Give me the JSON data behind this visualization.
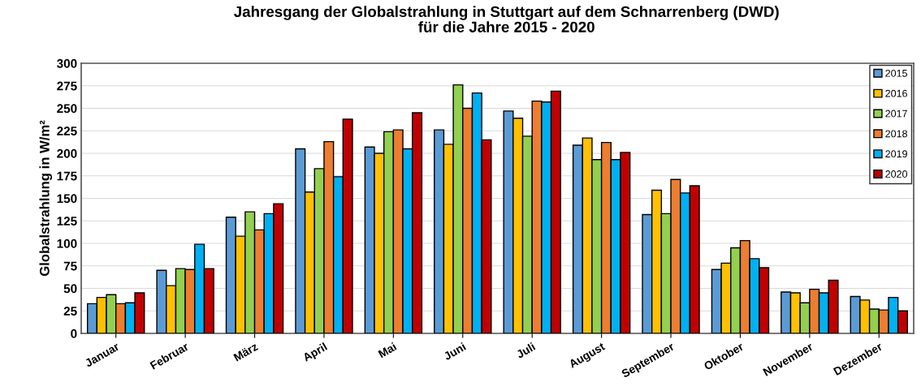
{
  "chart_data": {
    "type": "bar",
    "title": "Jahresgang der Globalstrahlung in Stuttgart auf dem Schnarrenberg (DWD)\nfür die Jahre 2015 - 2020",
    "ylabel": "Globalstrahlung in W/m²",
    "categories": [
      "Januar",
      "Februar",
      "März",
      "April",
      "Mai",
      "Juni",
      "Juli",
      "August",
      "September",
      "Oktober",
      "November",
      "Dezember"
    ],
    "series": [
      {
        "name": "2015",
        "color": "#5b9bd5",
        "values": [
          33,
          70,
          129,
          205,
          207,
          226,
          247,
          209,
          132,
          71,
          46,
          41
        ]
      },
      {
        "name": "2016",
        "color": "#ffc000",
        "values": [
          40,
          53,
          108,
          157,
          200,
          210,
          239,
          217,
          159,
          78,
          45,
          37
        ]
      },
      {
        "name": "2017",
        "color": "#92d050",
        "values": [
          43,
          72,
          135,
          183,
          224,
          276,
          219,
          193,
          133,
          95,
          34,
          27
        ]
      },
      {
        "name": "2018",
        "color": "#ed7d31",
        "values": [
          33,
          71,
          115,
          213,
          226,
          250,
          258,
          212,
          171,
          103,
          49,
          26
        ]
      },
      {
        "name": "2019",
        "color": "#00b0f0",
        "values": [
          34,
          99,
          133,
          174,
          205,
          267,
          257,
          193,
          156,
          83,
          45,
          40
        ]
      },
      {
        "name": "2020",
        "color": "#c00000",
        "values": [
          45,
          72,
          144,
          238,
          245,
          215,
          269,
          201,
          164,
          73,
          59,
          25
        ]
      }
    ],
    "ylim": [
      0,
      300
    ],
    "yticks": [
      0,
      25,
      50,
      75,
      100,
      125,
      150,
      175,
      200,
      225,
      250,
      275,
      300
    ],
    "grid": "y",
    "legend": "top right"
  }
}
